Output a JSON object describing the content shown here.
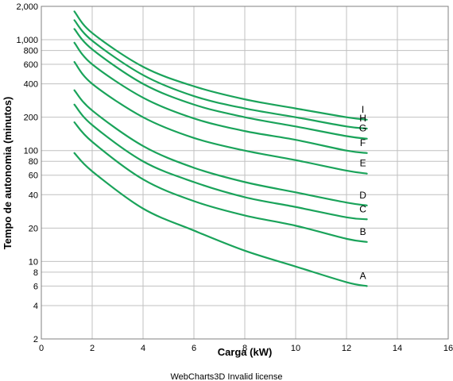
{
  "chart_data": {
    "type": "line",
    "xlabel": "Carga (kW)",
    "ylabel": "Tempo de autonomia (minutos)",
    "xlim": [
      0,
      16
    ],
    "ylim": [
      2,
      2000
    ],
    "y_scale": "log",
    "grid": true,
    "line_color": "#1aa35a",
    "grid_color": "#c0c0c0",
    "x_ticks": [
      "0",
      "2",
      "4",
      "6",
      "8",
      "10",
      "12",
      "14",
      "16"
    ],
    "y_ticks": [
      {
        "value": 2,
        "label": "2"
      },
      {
        "value": 4,
        "label": "4"
      },
      {
        "value": 6,
        "label": "6"
      },
      {
        "value": 8,
        "label": "8"
      },
      {
        "value": 10,
        "label": "10"
      },
      {
        "value": 20,
        "label": "20"
      },
      {
        "value": 40,
        "label": "40"
      },
      {
        "value": 60,
        "label": "60"
      },
      {
        "value": 80,
        "label": "80"
      },
      {
        "value": 100,
        "label": "100"
      },
      {
        "value": 200,
        "label": "200"
      },
      {
        "value": 400,
        "label": "400"
      },
      {
        "value": 600,
        "label": "600"
      },
      {
        "value": 800,
        "label": "800"
      },
      {
        "value": 1000,
        "label": "1,000"
      },
      {
        "value": 2000,
        "label": "2,000"
      }
    ],
    "series": [
      {
        "name": "A",
        "x": [
          1.3,
          2,
          4,
          6,
          8,
          10,
          12,
          12.8
        ],
        "y": [
          95,
          65,
          30,
          19,
          12.5,
          9,
          6.5,
          6
        ]
      },
      {
        "name": "B",
        "x": [
          1.3,
          2,
          4,
          6,
          8,
          10,
          12,
          12.8
        ],
        "y": [
          180,
          120,
          55,
          35,
          26,
          21,
          16,
          15
        ]
      },
      {
        "name": "C",
        "x": [
          1.3,
          2,
          4,
          6,
          8,
          10,
          12,
          12.8
        ],
        "y": [
          260,
          170,
          80,
          52,
          38,
          31,
          25,
          24
        ]
      },
      {
        "name": "D",
        "x": [
          1.3,
          2,
          4,
          6,
          8,
          10,
          12,
          12.8
        ],
        "y": [
          350,
          230,
          110,
          70,
          52,
          42,
          34,
          32
        ]
      },
      {
        "name": "E",
        "x": [
          1.3,
          2,
          4,
          6,
          8,
          10,
          12,
          12.8
        ],
        "y": [
          630,
          400,
          200,
          130,
          100,
          82,
          66,
          62
        ]
      },
      {
        "name": "F",
        "x": [
          1.3,
          2,
          4,
          6,
          8,
          10,
          12,
          12.8
        ],
        "y": [
          940,
          600,
          300,
          195,
          150,
          125,
          100,
          95
        ]
      },
      {
        "name": "G",
        "x": [
          1.3,
          2,
          4,
          6,
          8,
          10,
          12,
          12.8
        ],
        "y": [
          1250,
          820,
          400,
          260,
          200,
          165,
          135,
          128
        ]
      },
      {
        "name": "H",
        "x": [
          1.3,
          2,
          4,
          6,
          8,
          10,
          12,
          12.8
        ],
        "y": [
          1500,
          980,
          480,
          310,
          240,
          200,
          165,
          158
        ]
      },
      {
        "name": "I",
        "x": [
          1.3,
          2,
          4,
          6,
          8,
          10,
          12,
          12.8
        ],
        "y": [
          1800,
          1150,
          570,
          380,
          290,
          240,
          200,
          190
        ]
      }
    ]
  },
  "footer_text": "WebCharts3D Invalid license"
}
